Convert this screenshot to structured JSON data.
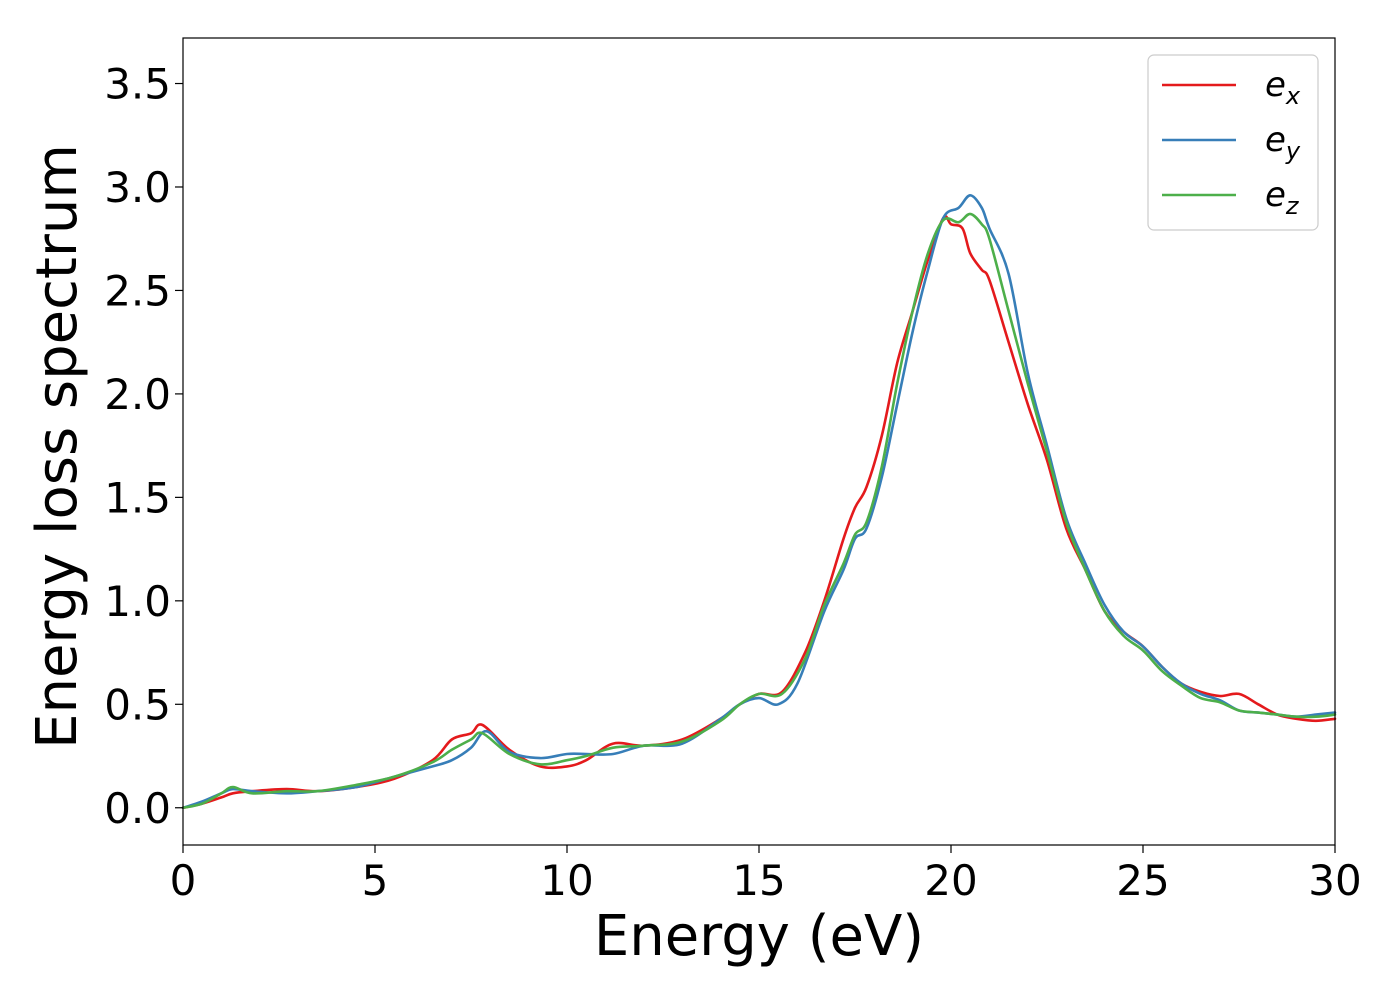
{
  "chart_data": {
    "type": "line",
    "title": "",
    "xlabel": "Energy (eV)",
    "ylabel": "Energy loss spectrum",
    "xlim": [
      0,
      30
    ],
    "ylim": [
      -0.18,
      3.72
    ],
    "xticks": [
      0,
      5,
      10,
      15,
      20,
      25,
      30
    ],
    "xtick_labels": [
      "0",
      "5",
      "10",
      "15",
      "20",
      "25",
      "30"
    ],
    "yticks": [
      0.0,
      0.5,
      1.0,
      1.5,
      2.0,
      2.5,
      3.0,
      3.5
    ],
    "ytick_labels": [
      "0.0",
      "0.5",
      "1.0",
      "1.5",
      "2.0",
      "2.5",
      "3.0",
      "3.5"
    ],
    "grid": false,
    "legend_position": "top-right",
    "series": [
      {
        "name": "e",
        "subscript": "x",
        "color": "#e41a1c",
        "points": [
          [
            0,
            0
          ],
          [
            0.5,
            0.02
          ],
          [
            1.0,
            0.05
          ],
          [
            1.3,
            0.07
          ],
          [
            1.8,
            0.08
          ],
          [
            2.7,
            0.09
          ],
          [
            3.5,
            0.08
          ],
          [
            4.5,
            0.1
          ],
          [
            5.5,
            0.14
          ],
          [
            6.5,
            0.23
          ],
          [
            7.0,
            0.33
          ],
          [
            7.5,
            0.36
          ],
          [
            7.8,
            0.4
          ],
          [
            8.5,
            0.28
          ],
          [
            9.3,
            0.2
          ],
          [
            10.0,
            0.2
          ],
          [
            10.5,
            0.23
          ],
          [
            11.2,
            0.31
          ],
          [
            12.0,
            0.3
          ],
          [
            13.0,
            0.33
          ],
          [
            14.0,
            0.43
          ],
          [
            14.5,
            0.5
          ],
          [
            15.0,
            0.55
          ],
          [
            15.6,
            0.56
          ],
          [
            16.2,
            0.75
          ],
          [
            16.7,
            1.0
          ],
          [
            17.2,
            1.3
          ],
          [
            17.5,
            1.45
          ],
          [
            17.8,
            1.55
          ],
          [
            18.2,
            1.8
          ],
          [
            18.6,
            2.15
          ],
          [
            19.0,
            2.4
          ],
          [
            19.4,
            2.65
          ],
          [
            19.8,
            2.85
          ],
          [
            20.0,
            2.82
          ],
          [
            20.3,
            2.8
          ],
          [
            20.5,
            2.68
          ],
          [
            20.8,
            2.6
          ],
          [
            21.0,
            2.55
          ],
          [
            21.5,
            2.25
          ],
          [
            22.0,
            1.95
          ],
          [
            22.5,
            1.68
          ],
          [
            23.0,
            1.35
          ],
          [
            23.5,
            1.15
          ],
          [
            24.0,
            0.95
          ],
          [
            24.5,
            0.85
          ],
          [
            25.0,
            0.78
          ],
          [
            25.5,
            0.68
          ],
          [
            26.0,
            0.6
          ],
          [
            26.5,
            0.56
          ],
          [
            27.0,
            0.54
          ],
          [
            27.5,
            0.55
          ],
          [
            28.0,
            0.5
          ],
          [
            28.5,
            0.45
          ],
          [
            29.0,
            0.43
          ],
          [
            29.5,
            0.42
          ],
          [
            30.0,
            0.43
          ]
        ]
      },
      {
        "name": "e",
        "subscript": "y",
        "color": "#377eb8",
        "points": [
          [
            0,
            0
          ],
          [
            0.5,
            0.03
          ],
          [
            1.0,
            0.07
          ],
          [
            1.3,
            0.09
          ],
          [
            1.8,
            0.08
          ],
          [
            2.7,
            0.07
          ],
          [
            3.5,
            0.08
          ],
          [
            4.5,
            0.1
          ],
          [
            5.5,
            0.15
          ],
          [
            6.5,
            0.2
          ],
          [
            7.0,
            0.23
          ],
          [
            7.5,
            0.29
          ],
          [
            7.9,
            0.37
          ],
          [
            8.5,
            0.27
          ],
          [
            9.3,
            0.24
          ],
          [
            10.0,
            0.26
          ],
          [
            10.5,
            0.26
          ],
          [
            11.2,
            0.26
          ],
          [
            12.0,
            0.3
          ],
          [
            13.0,
            0.31
          ],
          [
            14.0,
            0.43
          ],
          [
            14.5,
            0.5
          ],
          [
            15.0,
            0.53
          ],
          [
            15.5,
            0.5
          ],
          [
            16.0,
            0.6
          ],
          [
            16.7,
            0.95
          ],
          [
            17.2,
            1.15
          ],
          [
            17.5,
            1.3
          ],
          [
            17.8,
            1.35
          ],
          [
            18.2,
            1.6
          ],
          [
            18.6,
            1.95
          ],
          [
            19.0,
            2.3
          ],
          [
            19.4,
            2.6
          ],
          [
            19.8,
            2.85
          ],
          [
            20.2,
            2.9
          ],
          [
            20.5,
            2.96
          ],
          [
            20.8,
            2.9
          ],
          [
            21.0,
            2.8
          ],
          [
            21.5,
            2.58
          ],
          [
            22.0,
            2.1
          ],
          [
            22.5,
            1.75
          ],
          [
            23.0,
            1.4
          ],
          [
            23.5,
            1.18
          ],
          [
            24.0,
            0.98
          ],
          [
            24.5,
            0.85
          ],
          [
            25.0,
            0.78
          ],
          [
            25.5,
            0.68
          ],
          [
            26.0,
            0.6
          ],
          [
            26.5,
            0.55
          ],
          [
            27.0,
            0.52
          ],
          [
            27.5,
            0.47
          ],
          [
            28.0,
            0.46
          ],
          [
            28.5,
            0.45
          ],
          [
            29.0,
            0.44
          ],
          [
            29.5,
            0.45
          ],
          [
            30.0,
            0.46
          ]
        ]
      },
      {
        "name": "e",
        "subscript": "z",
        "color": "#4daf4a",
        "points": [
          [
            0,
            0
          ],
          [
            0.5,
            0.02
          ],
          [
            1.0,
            0.07
          ],
          [
            1.3,
            0.1
          ],
          [
            1.8,
            0.07
          ],
          [
            2.7,
            0.08
          ],
          [
            3.5,
            0.08
          ],
          [
            4.5,
            0.11
          ],
          [
            5.5,
            0.15
          ],
          [
            6.5,
            0.22
          ],
          [
            7.0,
            0.28
          ],
          [
            7.5,
            0.33
          ],
          [
            7.8,
            0.36
          ],
          [
            8.5,
            0.26
          ],
          [
            9.3,
            0.21
          ],
          [
            10.0,
            0.23
          ],
          [
            10.5,
            0.25
          ],
          [
            11.2,
            0.29
          ],
          [
            12.0,
            0.3
          ],
          [
            13.0,
            0.32
          ],
          [
            14.0,
            0.42
          ],
          [
            14.5,
            0.5
          ],
          [
            15.0,
            0.55
          ],
          [
            15.6,
            0.55
          ],
          [
            16.2,
            0.72
          ],
          [
            16.7,
            0.98
          ],
          [
            17.2,
            1.18
          ],
          [
            17.5,
            1.32
          ],
          [
            17.8,
            1.38
          ],
          [
            18.2,
            1.65
          ],
          [
            18.6,
            2.05
          ],
          [
            19.0,
            2.4
          ],
          [
            19.4,
            2.68
          ],
          [
            19.8,
            2.84
          ],
          [
            20.2,
            2.83
          ],
          [
            20.5,
            2.87
          ],
          [
            20.8,
            2.82
          ],
          [
            21.0,
            2.75
          ],
          [
            21.5,
            2.4
          ],
          [
            22.0,
            2.05
          ],
          [
            22.5,
            1.72
          ],
          [
            23.0,
            1.38
          ],
          [
            23.5,
            1.15
          ],
          [
            24.0,
            0.95
          ],
          [
            24.5,
            0.83
          ],
          [
            25.0,
            0.76
          ],
          [
            25.5,
            0.66
          ],
          [
            26.0,
            0.59
          ],
          [
            26.5,
            0.53
          ],
          [
            27.0,
            0.51
          ],
          [
            27.5,
            0.47
          ],
          [
            28.0,
            0.46
          ],
          [
            28.5,
            0.45
          ],
          [
            29.0,
            0.44
          ],
          [
            29.5,
            0.44
          ],
          [
            30.0,
            0.45
          ]
        ]
      }
    ]
  }
}
